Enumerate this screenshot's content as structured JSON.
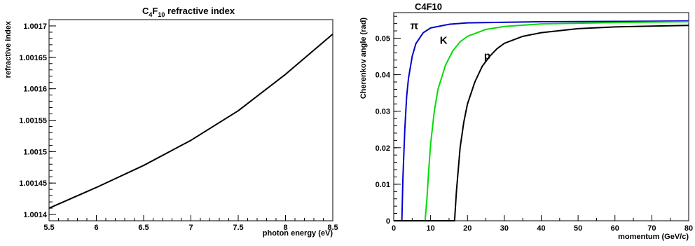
{
  "chart_data": [
    {
      "type": "line",
      "title": "C4F10 refractive index",
      "title_parts": {
        "base": "C",
        "s1": "4",
        "mid": "F",
        "s2": "10",
        "rest": " refractive index"
      },
      "xlabel": "photon energy (eV)",
      "ylabel": "refractive index",
      "xlim": [
        5.5,
        8.5
      ],
      "ylim": [
        1.00139,
        1.00171
      ],
      "x_ticks": [
        5.5,
        6,
        6.5,
        7,
        7.5,
        8,
        8.5
      ],
      "x_tick_labels": [
        "5.5",
        "6",
        "6.5",
        "7",
        "7.5",
        "8",
        "8.5"
      ],
      "y_ticks": [
        1.0014,
        1.00145,
        1.0015,
        1.00155,
        1.0016,
        1.00165,
        1.0017
      ],
      "y_tick_labels": [
        "1.0014",
        "1.00145",
        "1.0015",
        "1.00155",
        "1.0016",
        "1.00165",
        "1.0017"
      ],
      "grid": false,
      "series": [
        {
          "color": "#000000",
          "x": [
            5.5,
            6.0,
            6.5,
            7.0,
            7.5,
            8.0,
            8.5
          ],
          "y": [
            1.00141,
            1.001443,
            1.001478,
            1.001518,
            1.001565,
            1.001623,
            1.001687
          ]
        }
      ]
    },
    {
      "type": "line",
      "title": "C4F10",
      "xlabel": "momentum (GeV/c)",
      "ylabel": "Cherenkov angle (rad)",
      "xlim": [
        0,
        80
      ],
      "ylim": [
        0,
        0.057
      ],
      "x_ticks": [
        0,
        10,
        20,
        30,
        40,
        50,
        60,
        70,
        80
      ],
      "x_tick_labels": [
        "0",
        "10",
        "20",
        "30",
        "40",
        "50",
        "60",
        "70",
        "80"
      ],
      "y_ticks": [
        0,
        0.01,
        0.02,
        0.03,
        0.04,
        0.05
      ],
      "y_tick_labels": [
        "0",
        "0.01",
        "0.02",
        "0.03",
        "0.04",
        "0.05"
      ],
      "grid": false,
      "series": [
        {
          "color": "#0000cc",
          "x": [
            0,
            2.2,
            2.5,
            3,
            3.5,
            4,
            5,
            6,
            8,
            10,
            15,
            20,
            40,
            60,
            80
          ],
          "y": [
            0,
            0,
            0.012,
            0.025,
            0.034,
            0.039,
            0.045,
            0.0485,
            0.0515,
            0.0528,
            0.0538,
            0.0542,
            0.0545,
            0.0546,
            0.0547
          ]
        },
        {
          "color": "#00dd00",
          "x": [
            0,
            8.5,
            9,
            9.5,
            10,
            11,
            12,
            14,
            16,
            18,
            20,
            25,
            30,
            40,
            60,
            80
          ],
          "y": [
            0,
            0,
            0.006,
            0.014,
            0.021,
            0.03,
            0.036,
            0.0425,
            0.0465,
            0.049,
            0.0505,
            0.0524,
            0.0532,
            0.0539,
            0.0543,
            0.0545
          ]
        },
        {
          "color": "#000000",
          "x": [
            0,
            16.5,
            17,
            18,
            19,
            20,
            22,
            24,
            26,
            28,
            30,
            35,
            40,
            50,
            60,
            70,
            80
          ],
          "y": [
            0,
            0,
            0.008,
            0.02,
            0.027,
            0.032,
            0.038,
            0.0423,
            0.045,
            0.0471,
            0.0486,
            0.0505,
            0.0515,
            0.0526,
            0.0531,
            0.0533,
            0.0535
          ]
        }
      ],
      "annotations": [
        {
          "text": "π",
          "x": 4.5,
          "y": 0.0525
        },
        {
          "text": "K",
          "x": 12.5,
          "y": 0.0485
        },
        {
          "text": "p",
          "x": 24.5,
          "y": 0.0442
        }
      ]
    }
  ]
}
